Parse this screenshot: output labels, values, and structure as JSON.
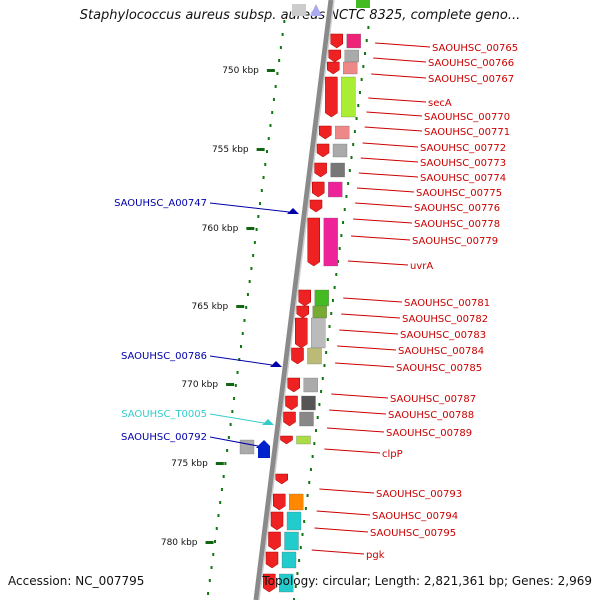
{
  "title": "Staphylococcus aureus subsp. aureus NCTC 8325, complete geno...",
  "footer": {
    "accession": "Accession: NC_007795",
    "topology": "Topology: circular; Length: 2,821,361 bp; Genes: 2,969"
  },
  "colors": {
    "label_red": "#cc0000",
    "label_blue": "#0000aa",
    "label_cyan": "#33cccc",
    "tick_green": "#116611",
    "backbone": "#8a8a8a"
  },
  "kbp_ticks": [
    {
      "kbp": 750,
      "label": "750 kbp"
    },
    {
      "kbp": 755,
      "label": "755 kbp"
    },
    {
      "kbp": 760,
      "label": "760 kbp"
    },
    {
      "kbp": 765,
      "label": "765 kbp"
    },
    {
      "kbp": 770,
      "label": "770 kbp"
    },
    {
      "kbp": 775,
      "label": "775 kbp"
    },
    {
      "kbp": 780,
      "label": "780 kbp"
    }
  ],
  "genes_right": [
    "SAOUHSC_00765",
    "SAOUHSC_00766",
    "SAOUHSC_00767",
    "secA",
    "SAOUHSC_00770",
    "SAOUHSC_00771",
    "SAOUHSC_00772",
    "SAOUHSC_00773",
    "SAOUHSC_00774",
    "SAOUHSC_00775",
    "SAOUHSC_00776",
    "SAOUHSC_00778",
    "SAOUHSC_00779",
    "uvrA",
    "SAOUHSC_00781",
    "SAOUHSC_00782",
    "SAOUHSC_00783",
    "SAOUHSC_00784",
    "SAOUHSC_00785",
    "SAOUHSC_00787",
    "SAOUHSC_00788",
    "SAOUHSC_00789",
    "clpP",
    "SAOUHSC_00793",
    "SAOUHSC_00794",
    "SAOUHSC_00795",
    "pgk"
  ],
  "genes_left": [
    {
      "name": "SAOUHSC_A00747",
      "color": "#0000aa"
    },
    {
      "name": "SAOUHSC_00786",
      "color": "#0000aa"
    },
    {
      "name": "SAOUHSC_T0005",
      "color": "#33cccc"
    },
    {
      "name": "SAOUHSC_00792",
      "color": "#0000aa"
    }
  ]
}
